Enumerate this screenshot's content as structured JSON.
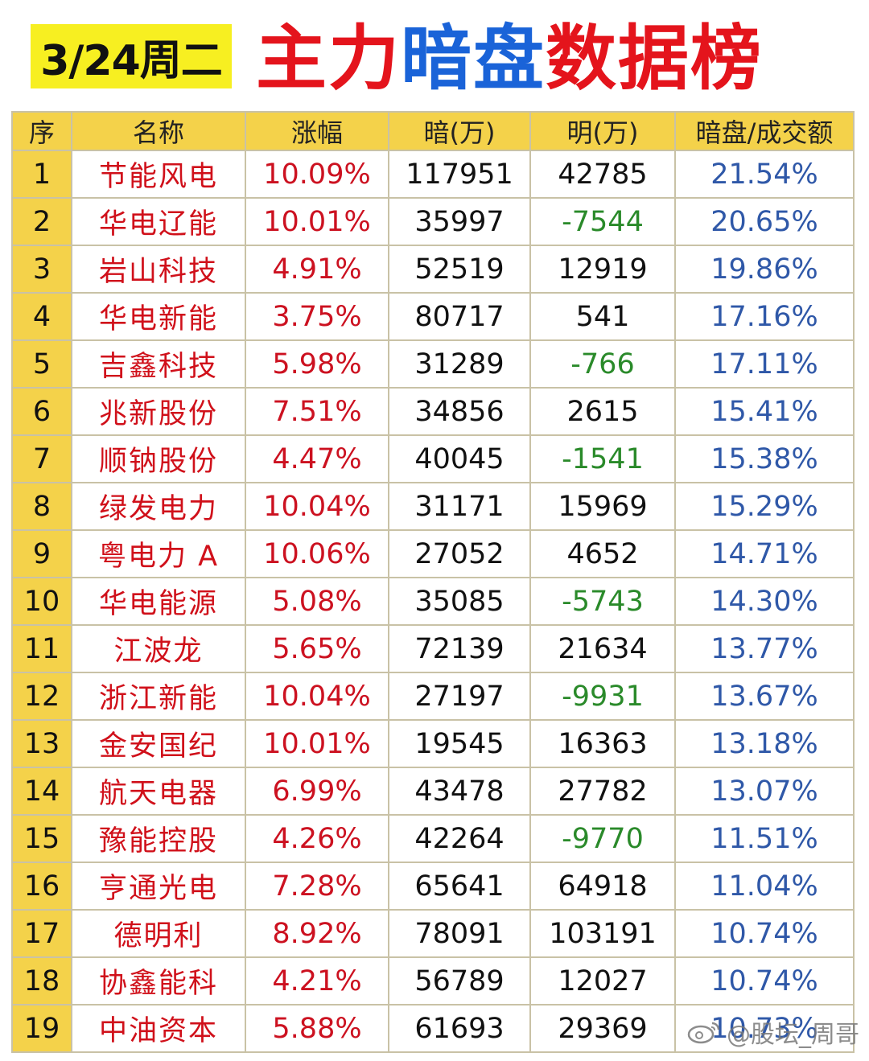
{
  "header": {
    "date": "3/24周二",
    "title_parts": [
      {
        "text": "主力",
        "color": "red"
      },
      {
        "text": "暗盘",
        "color": "blue"
      },
      {
        "text": "数据榜",
        "color": "red"
      }
    ]
  },
  "table": {
    "columns": [
      "序",
      "名称",
      "涨幅",
      "暗(万)",
      "明(万)",
      "暗盘/成交额"
    ],
    "rows": [
      {
        "idx": "1",
        "name": "节能风电",
        "change": "10.09%",
        "dark": "117951",
        "light": "42785",
        "ratio": "21.54%"
      },
      {
        "idx": "2",
        "name": "华电辽能",
        "change": "10.01%",
        "dark": "35997",
        "light": "-7544",
        "ratio": "20.65%"
      },
      {
        "idx": "3",
        "name": "岩山科技",
        "change": "4.91%",
        "dark": "52519",
        "light": "12919",
        "ratio": "19.86%"
      },
      {
        "idx": "4",
        "name": "华电新能",
        "change": "3.75%",
        "dark": "80717",
        "light": "541",
        "ratio": "17.16%"
      },
      {
        "idx": "5",
        "name": "吉鑫科技",
        "change": "5.98%",
        "dark": "31289",
        "light": "-766",
        "ratio": "17.11%"
      },
      {
        "idx": "6",
        "name": "兆新股份",
        "change": "7.51%",
        "dark": "34856",
        "light": "2615",
        "ratio": "15.41%"
      },
      {
        "idx": "7",
        "name": "顺钠股份",
        "change": "4.47%",
        "dark": "40045",
        "light": "-1541",
        "ratio": "15.38%"
      },
      {
        "idx": "8",
        "name": "绿发电力",
        "change": "10.04%",
        "dark": "31171",
        "light": "15969",
        "ratio": "15.29%"
      },
      {
        "idx": "9",
        "name": "粤电力 A",
        "change": "10.06%",
        "dark": "27052",
        "light": "4652",
        "ratio": "14.71%"
      },
      {
        "idx": "10",
        "name": "华电能源",
        "change": "5.08%",
        "dark": "35085",
        "light": "-5743",
        "ratio": "14.30%"
      },
      {
        "idx": "11",
        "name": "江波龙",
        "change": "5.65%",
        "dark": "72139",
        "light": "21634",
        "ratio": "13.77%"
      },
      {
        "idx": "12",
        "name": "浙江新能",
        "change": "10.04%",
        "dark": "27197",
        "light": "-9931",
        "ratio": "13.67%"
      },
      {
        "idx": "13",
        "name": "金安国纪",
        "change": "10.01%",
        "dark": "19545",
        "light": "16363",
        "ratio": "13.18%"
      },
      {
        "idx": "14",
        "name": "航天电器",
        "change": "6.99%",
        "dark": "43478",
        "light": "27782",
        "ratio": "13.07%"
      },
      {
        "idx": "15",
        "name": "豫能控股",
        "change": "4.26%",
        "dark": "42264",
        "light": "-9770",
        "ratio": "11.51%"
      },
      {
        "idx": "16",
        "name": "亨通光电",
        "change": "7.28%",
        "dark": "65641",
        "light": "64918",
        "ratio": "11.04%"
      },
      {
        "idx": "17",
        "name": "德明利",
        "change": "8.92%",
        "dark": "78091",
        "light": "103191",
        "ratio": "10.74%"
      },
      {
        "idx": "18",
        "name": "协鑫能科",
        "change": "4.21%",
        "dark": "56789",
        "light": "12027",
        "ratio": "10.74%"
      },
      {
        "idx": "19",
        "name": "中油资本",
        "change": "5.88%",
        "dark": "61693",
        "light": "29369",
        "ratio": "10.73%"
      }
    ]
  },
  "watermark": {
    "text": "@股坛_周哥",
    "icon": "weibo-icon"
  },
  "colors": {
    "red": "#e4141c",
    "blue": "#1a63d8",
    "header_yellow": "#f4d24a",
    "badge_yellow": "#f7ef21",
    "negative_green": "#2a8a2a",
    "ratio_blue": "#2f58a8"
  }
}
